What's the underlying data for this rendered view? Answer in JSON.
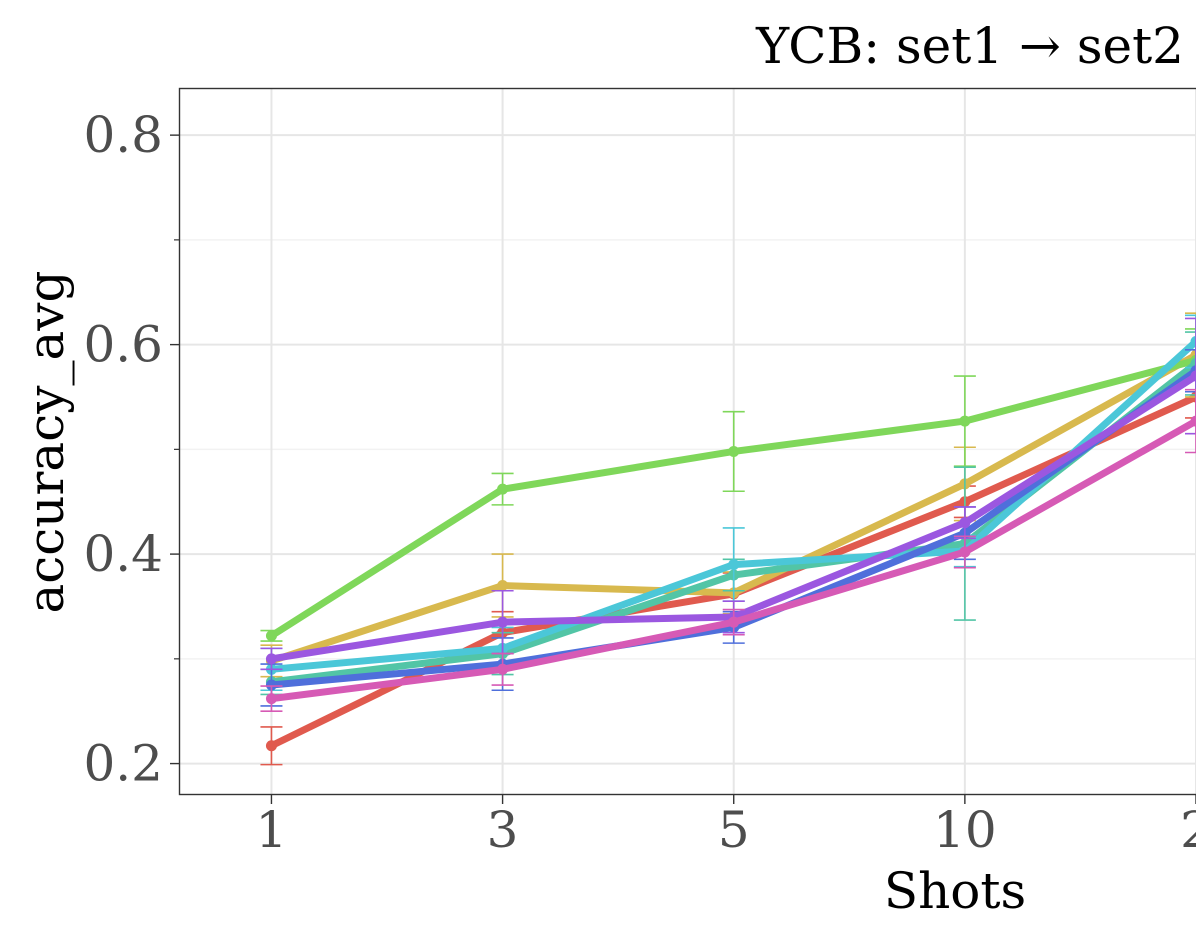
{
  "chart_data": {
    "type": "line",
    "title": "YCB: set1 → set2",
    "xlabel": "Shots",
    "ylabel": "accuracy_avg",
    "x_positions": [
      1,
      2,
      3,
      4,
      5
    ],
    "x_tick_labels": [
      "1",
      "3",
      "5",
      "10",
      "2"
    ],
    "y_ticks": [
      0.2,
      0.4,
      0.6,
      0.8
    ],
    "y_tick_labels": [
      "0.2",
      "0.4",
      "0.6",
      "0.8"
    ],
    "xlim": [
      0.6,
      5.0
    ],
    "ylim": [
      0.17,
      0.845
    ],
    "grid": true,
    "series": [
      {
        "color": "#e05a4e",
        "values": [
          0.217,
          0.325,
          0.362,
          0.45,
          0.55
        ],
        "err": [
          0.018,
          0.02,
          0.02,
          0.015,
          0.02
        ]
      },
      {
        "color": "#d8b94e",
        "values": [
          0.298,
          0.37,
          0.363,
          0.467,
          0.59
        ],
        "err": [
          0.015,
          0.03,
          0.02,
          0.035,
          0.04
        ]
      },
      {
        "color": "#7fd75a",
        "values": [
          0.322,
          0.462,
          0.498,
          0.527,
          0.585
        ],
        "err": [
          0.005,
          0.015,
          0.038,
          0.043,
          0.03
        ]
      },
      {
        "color": "#52c5a6",
        "values": [
          0.278,
          0.305,
          0.38,
          0.41,
          0.582
        ],
        "err": [
          0.012,
          0.02,
          0.015,
          0.073,
          0.03
        ]
      },
      {
        "color": "#4bc7d8",
        "values": [
          0.29,
          0.31,
          0.39,
          0.403,
          0.603
        ],
        "err": [
          0.02,
          0.02,
          0.035,
          0.015,
          0.025
        ]
      },
      {
        "color": "#4f6fdb",
        "values": [
          0.275,
          0.295,
          0.33,
          0.42,
          0.575
        ],
        "err": [
          0.02,
          0.025,
          0.015,
          0.025,
          0.02
        ]
      },
      {
        "color": "#9b57e0",
        "values": [
          0.3,
          0.335,
          0.34,
          0.43,
          0.57
        ],
        "err": [
          0.01,
          0.03,
          0.015,
          0.015,
          0.055
        ]
      },
      {
        "color": "#d65ab5",
        "values": [
          0.262,
          0.29,
          0.335,
          0.402,
          0.527
        ],
        "err": [
          0.012,
          0.015,
          0.012,
          0.015,
          0.03
        ]
      }
    ]
  }
}
